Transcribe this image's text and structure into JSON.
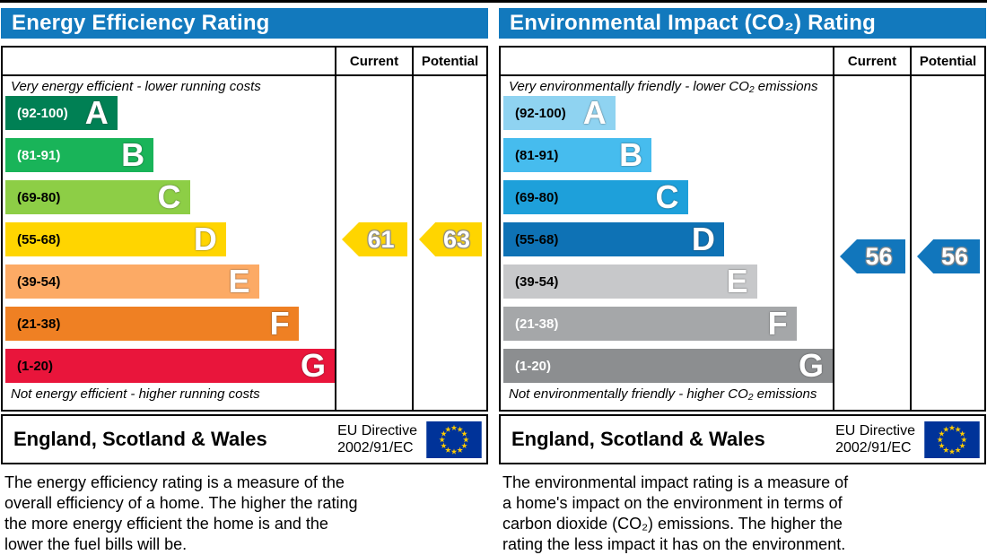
{
  "page": {
    "background": "#ffffff",
    "header_blue": "#1279bd"
  },
  "chart_data": [
    {
      "type": "bar",
      "title": "Energy Efficiency Rating",
      "categories": [
        "A",
        "B",
        "C",
        "D",
        "E",
        "F",
        "G"
      ],
      "band_ranges": [
        "92-100",
        "81-91",
        "69-80",
        "55-68",
        "39-54",
        "21-38",
        "1-20"
      ],
      "band_colors": [
        "#008054",
        "#19b459",
        "#8dce46",
        "#ffd500",
        "#fcaa65",
        "#ef8023",
        "#e9153b"
      ],
      "band_widths_pct": [
        34,
        45,
        56,
        67,
        77,
        89,
        100
      ],
      "current": 61,
      "potential": 63,
      "current_band": "D",
      "potential_band": "D",
      "legend_position": "top-right-columns"
    },
    {
      "type": "bar",
      "title": "Environmental Impact (CO₂) Rating",
      "categories": [
        "A",
        "B",
        "C",
        "D",
        "E",
        "F",
        "G"
      ],
      "band_ranges": [
        "92-100",
        "81-91",
        "69-80",
        "55-68",
        "39-54",
        "21-38",
        "1-20"
      ],
      "band_colors": [
        "#8fd3f1",
        "#46bcee",
        "#1ea0da",
        "#0e72b5",
        "#c7c8ca",
        "#a5a7a9",
        "#8c8e90"
      ],
      "band_widths_pct": [
        34,
        45,
        56,
        67,
        77,
        89,
        100
      ],
      "current": 56,
      "potential": 56,
      "current_band": "D",
      "potential_band": "D",
      "legend_position": "top-right-columns"
    }
  ],
  "panels": [
    {
      "title": "Energy Efficiency Rating",
      "col_current": "Current",
      "col_potential": "Potential",
      "top_caption": "Very energy efficient - lower running costs",
      "bottom_caption": "Not energy efficient - higher running costs",
      "bands": [
        {
          "range": "(92-100)",
          "letter": "A",
          "color": "#008054",
          "width_pct": 34,
          "label_color": "#ffffff"
        },
        {
          "range": "(81-91)",
          "letter": "B",
          "color": "#19b459",
          "width_pct": 45,
          "label_color": "#ffffff"
        },
        {
          "range": "(69-80)",
          "letter": "C",
          "color": "#8dce46",
          "width_pct": 56,
          "label_color": "#000000"
        },
        {
          "range": "(55-68)",
          "letter": "D",
          "color": "#ffd500",
          "width_pct": 67,
          "label_color": "#000000"
        },
        {
          "range": "(39-54)",
          "letter": "E",
          "color": "#fcaa65",
          "width_pct": 77,
          "label_color": "#000000"
        },
        {
          "range": "(21-38)",
          "letter": "F",
          "color": "#ef8023",
          "width_pct": 89,
          "label_color": "#000000"
        },
        {
          "range": "(1-20)",
          "letter": "G",
          "color": "#e9153b",
          "width_pct": 100,
          "label_color": "#000000"
        }
      ],
      "current": {
        "value": "61",
        "color": "#ffd500",
        "band_row": 3
      },
      "potential": {
        "value": "63",
        "color": "#ffd500",
        "band_row": 3
      },
      "footer": {
        "region": "England, Scotland & Wales",
        "directive1": "EU Directive",
        "directive2": "2002/91/EC"
      },
      "description": [
        "The energy efficiency rating is a measure of the",
        "overall efficiency of a home. The higher the rating",
        "the more energy efficient the home is and the",
        "lower the fuel bills will be."
      ]
    },
    {
      "title": "Environmental Impact (CO₂) Rating",
      "col_current": "Current",
      "col_potential": "Potential",
      "top_caption": "Very environmentally friendly - lower CO₂ emissions",
      "bottom_caption": "Not environmentally friendly - higher CO₂ emissions",
      "bands": [
        {
          "range": "(92-100)",
          "letter": "A",
          "color": "#8fd3f1",
          "width_pct": 34,
          "label_color": "#000000"
        },
        {
          "range": "(81-91)",
          "letter": "B",
          "color": "#46bcee",
          "width_pct": 45,
          "label_color": "#000000"
        },
        {
          "range": "(69-80)",
          "letter": "C",
          "color": "#1ea0da",
          "width_pct": 56,
          "label_color": "#000000"
        },
        {
          "range": "(55-68)",
          "letter": "D",
          "color": "#0e72b5",
          "width_pct": 67,
          "label_color": "#000000"
        },
        {
          "range": "(39-54)",
          "letter": "E",
          "color": "#c7c8ca",
          "width_pct": 77,
          "label_color": "#000000"
        },
        {
          "range": "(21-38)",
          "letter": "F",
          "color": "#a5a7a9",
          "width_pct": 89,
          "label_color": "#ffffff"
        },
        {
          "range": "(1-20)",
          "letter": "G",
          "color": "#8c8e90",
          "width_pct": 100,
          "label_color": "#ffffff"
        }
      ],
      "current": {
        "value": "56",
        "color": "#1176bc",
        "band_row": 3
      },
      "potential": {
        "value": "56",
        "color": "#1176bc",
        "band_row": 3
      },
      "footer": {
        "region": "England, Scotland & Wales",
        "directive1": "EU Directive",
        "directive2": "2002/91/EC"
      },
      "description": [
        "The environmental impact rating is a measure of",
        "a home's impact on the environment in terms of",
        "carbon dioxide (CO₂) emissions. The higher the",
        "rating the less impact it has on the environment."
      ]
    }
  ],
  "eu_flag": {
    "background": "#003399",
    "star_color": "#ffcc00",
    "star_count": 12
  }
}
